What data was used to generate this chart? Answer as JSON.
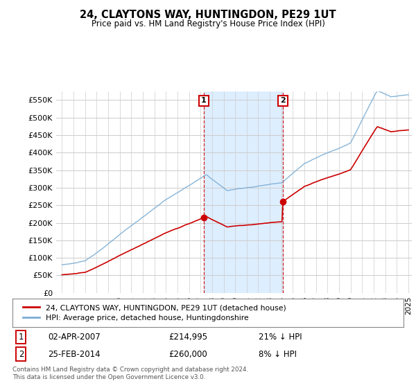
{
  "title": "24, CLAYTONS WAY, HUNTINGDON, PE29 1UT",
  "subtitle": "Price paid vs. HM Land Registry's House Price Index (HPI)",
  "legend_label_red": "24, CLAYTONS WAY, HUNTINGDON, PE29 1UT (detached house)",
  "legend_label_blue": "HPI: Average price, detached house, Huntingdonshire",
  "annotation1_date": "02-APR-2007",
  "annotation1_price": "£214,995",
  "annotation1_hpi": "21% ↓ HPI",
  "annotation2_date": "25-FEB-2014",
  "annotation2_price": "£260,000",
  "annotation2_hpi": "8% ↓ HPI",
  "footer": "Contains HM Land Registry data © Crown copyright and database right 2024.\nThis data is licensed under the Open Government Licence v3.0.",
  "red_color": "#cc0000",
  "blue_color": "#7aadd4",
  "shade_color": "#ddeeff",
  "bg_color": "#ffffff",
  "grid_color": "#cccccc",
  "ylim": [
    0,
    575000
  ],
  "yticks": [
    0,
    50000,
    100000,
    150000,
    200000,
    250000,
    300000,
    350000,
    400000,
    450000,
    500000,
    550000
  ],
  "ytick_labels": [
    "£0",
    "£50K",
    "£100K",
    "£150K",
    "£200K",
    "£250K",
    "£300K",
    "£350K",
    "£400K",
    "£450K",
    "£500K",
    "£550K"
  ],
  "sale1_year": 2007.25,
  "sale1_price": 214995,
  "sale2_year": 2014.12,
  "sale2_price": 260000,
  "xstart": 1995,
  "xend": 2025
}
